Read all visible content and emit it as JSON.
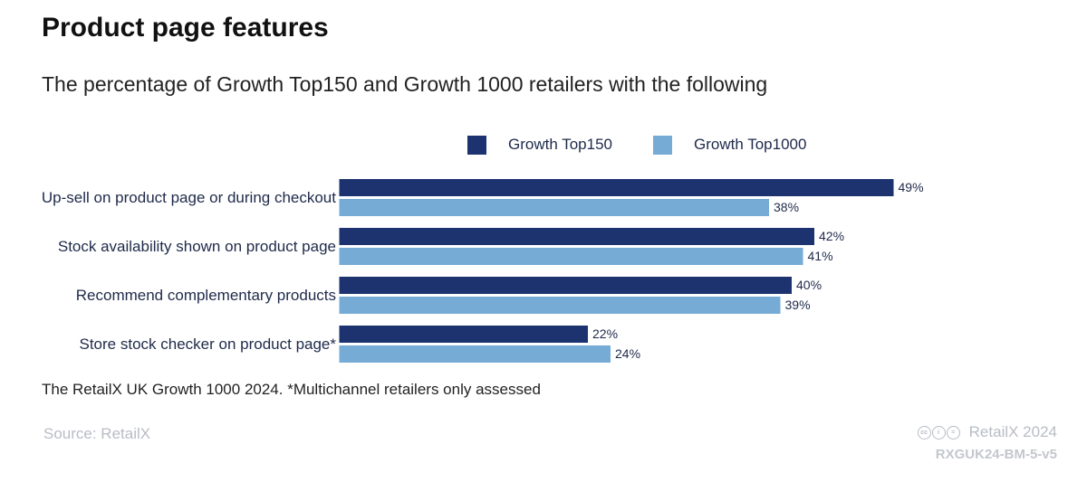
{
  "title": "Product page features",
  "subtitle": "The percentage of Growth Top150 and Growth 1000 retailers with the following",
  "legend": [
    {
      "label": "Growth Top150",
      "color": "#1c3370"
    },
    {
      "label": "Growth Top1000",
      "color": "#76abd6"
    }
  ],
  "chart_data": {
    "type": "bar",
    "orientation": "horizontal",
    "categories": [
      "Up-sell on product page or during checkout",
      "Stock availability shown on product page",
      "Recommend complementary products",
      "Store stock checker on product page*"
    ],
    "series": [
      {
        "name": "Growth Top150",
        "values": [
          49,
          42,
          40,
          22
        ],
        "color": "#1c3370"
      },
      {
        "name": "Growth Top1000",
        "values": [
          38,
          41,
          39,
          24
        ],
        "color": "#76abd6"
      }
    ],
    "value_suffix": "%",
    "xlim": [
      0,
      60
    ],
    "grid": false,
    "legend_position": "top"
  },
  "footnote": "The RetailX UK Growth 1000 2024. *Multichannel retailers only assessed",
  "source": "Source: RetailX",
  "brand": {
    "icons": [
      "cc-icon",
      "by-icon",
      "nd-icon"
    ],
    "text": "RetailX 2024",
    "code": "RXGUK24-BM-5-v5"
  }
}
